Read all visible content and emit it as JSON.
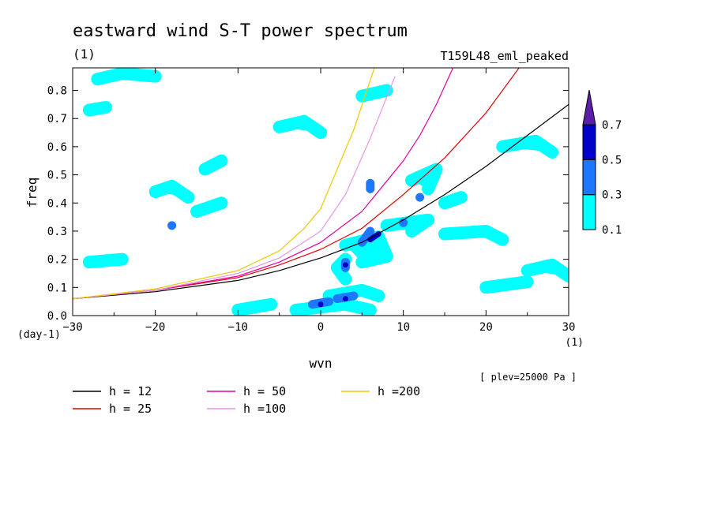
{
  "chart_data": {
    "type": "contour",
    "title": "eastward wind S-T power spectrum",
    "subtitle_left": "(1)",
    "subtitle_right": "T159L48_eml_peaked",
    "xlabel": "wvn",
    "ylabel": "freq",
    "x_unit": "(1)",
    "y_unit": "(day-1)",
    "note": "[ plev=25000 Pa ]",
    "xlim": [
      -30,
      30
    ],
    "ylim": [
      0,
      0.88
    ],
    "x_ticks": [
      "-30",
      "-20",
      "-10",
      "0",
      "10",
      "20",
      "30"
    ],
    "y_ticks": [
      "0.0",
      "0.1",
      "0.2",
      "0.3",
      "0.4",
      "0.5",
      "0.6",
      "0.7",
      "0.8"
    ],
    "colorbar": {
      "levels": [
        "0.1",
        "0.3",
        "0.5",
        "0.7"
      ],
      "colors": [
        "#00ffff",
        "#1e78ff",
        "#0000c8",
        "#5a1eaa"
      ]
    },
    "series": [
      {
        "name": "h = 12",
        "color": "#000000",
        "x": [
          -30,
          -20,
          -10,
          -5,
          0,
          5,
          10,
          15,
          20,
          25,
          30
        ],
        "y": [
          0.06,
          0.085,
          0.125,
          0.16,
          0.205,
          0.26,
          0.34,
          0.43,
          0.53,
          0.64,
          0.75
        ]
      },
      {
        "name": "h = 25",
        "color": "#e00000",
        "x": [
          -30,
          -20,
          -10,
          -5,
          0,
          5,
          10,
          15,
          20,
          24
        ],
        "y": [
          0.06,
          0.09,
          0.135,
          0.18,
          0.235,
          0.31,
          0.43,
          0.56,
          0.72,
          0.88
        ]
      },
      {
        "name": "h = 50",
        "color": "#e000a0",
        "x": [
          -30,
          -20,
          -10,
          -5,
          0,
          5,
          10,
          12,
          14,
          16
        ],
        "y": [
          0.06,
          0.09,
          0.14,
          0.19,
          0.26,
          0.37,
          0.55,
          0.64,
          0.75,
          0.88
        ]
      },
      {
        "name": "h =100",
        "color": "#e696e6",
        "x": [
          -30,
          -20,
          -10,
          -5,
          0,
          3,
          6,
          9
        ],
        "y": [
          0.06,
          0.09,
          0.15,
          0.205,
          0.3,
          0.43,
          0.63,
          0.85
        ]
      },
      {
        "name": "h =200",
        "color": "#f0c800",
        "x": [
          -30,
          -20,
          -10,
          -5,
          -2,
          0,
          2,
          4,
          6.5
        ],
        "y": [
          0.06,
          0.095,
          0.16,
          0.23,
          0.31,
          0.38,
          0.52,
          0.66,
          0.88
        ]
      }
    ],
    "regions": [
      {
        "level": "0.1",
        "points": [
          [
            3,
            0.25
          ],
          [
            7,
            0.28
          ],
          [
            8,
            0.21
          ],
          [
            5,
            0.19
          ]
        ]
      },
      {
        "level": "0.1",
        "points": [
          [
            -3,
            0.02
          ],
          [
            3,
            0.04
          ],
          [
            6,
            0.02
          ]
        ]
      },
      {
        "level": "0.1",
        "points": [
          [
            1,
            0.07
          ],
          [
            5,
            0.09
          ],
          [
            7,
            0.07
          ]
        ]
      },
      {
        "level": "0.1",
        "points": [
          [
            3,
            0.13
          ],
          [
            2,
            0.17
          ],
          [
            3,
            0.2
          ]
        ]
      },
      {
        "level": "0.1",
        "points": [
          [
            8,
            0.32
          ],
          [
            13,
            0.34
          ],
          [
            11,
            0.3
          ]
        ]
      },
      {
        "level": "0.1",
        "points": [
          [
            11,
            0.48
          ],
          [
            14,
            0.52
          ],
          [
            13,
            0.45
          ]
        ]
      },
      {
        "level": "0.1",
        "points": [
          [
            -28,
            0.73
          ],
          [
            -26,
            0.74
          ]
        ]
      },
      {
        "level": "0.1",
        "points": [
          [
            -27,
            0.84
          ],
          [
            -24,
            0.86
          ],
          [
            -20,
            0.85
          ]
        ]
      },
      {
        "level": "0.1",
        "points": [
          [
            -20,
            0.44
          ],
          [
            -18,
            0.46
          ],
          [
            -16,
            0.42
          ]
        ]
      },
      {
        "level": "0.1",
        "points": [
          [
            -14,
            0.52
          ],
          [
            -12,
            0.55
          ]
        ]
      },
      {
        "level": "0.1",
        "points": [
          [
            15,
            0.29
          ],
          [
            20,
            0.3
          ],
          [
            22,
            0.27
          ]
        ]
      },
      {
        "level": "0.1",
        "points": [
          [
            25,
            0.16
          ],
          [
            28,
            0.18
          ],
          [
            30,
            0.14
          ]
        ]
      },
      {
        "level": "0.1",
        "points": [
          [
            20,
            0.1
          ],
          [
            25,
            0.12
          ]
        ]
      },
      {
        "level": "0.1",
        "points": [
          [
            -28,
            0.19
          ],
          [
            -24,
            0.2
          ]
        ]
      },
      {
        "level": "0.1",
        "points": [
          [
            -10,
            0.02
          ],
          [
            -6,
            0.04
          ]
        ]
      },
      {
        "level": "0.1",
        "points": [
          [
            22,
            0.6
          ],
          [
            26,
            0.62
          ],
          [
            28,
            0.58
          ]
        ]
      },
      {
        "level": "0.1",
        "points": [
          [
            -5,
            0.67
          ],
          [
            -2,
            0.69
          ],
          [
            0,
            0.65
          ]
        ]
      },
      {
        "level": "0.1",
        "points": [
          [
            5,
            0.78
          ],
          [
            8,
            0.8
          ]
        ]
      },
      {
        "level": "0.1",
        "points": [
          [
            -15,
            0.37
          ],
          [
            -12,
            0.4
          ]
        ]
      },
      {
        "level": "0.1",
        "points": [
          [
            15,
            0.4
          ],
          [
            17,
            0.42
          ]
        ]
      },
      {
        "level": "0.3",
        "points": [
          [
            5,
            0.26
          ],
          [
            6,
            0.3
          ]
        ]
      },
      {
        "level": "0.3",
        "points": [
          [
            -1,
            0.04
          ],
          [
            1,
            0.05
          ]
        ]
      },
      {
        "level": "0.3",
        "points": [
          [
            2,
            0.06
          ],
          [
            4,
            0.07
          ]
        ]
      },
      {
        "level": "0.3",
        "points": [
          [
            3,
            0.17
          ],
          [
            3,
            0.19
          ]
        ]
      },
      {
        "level": "0.3",
        "points": [
          [
            12,
            0.42
          ]
        ]
      },
      {
        "level": "0.3",
        "points": [
          [
            6,
            0.47
          ],
          [
            6,
            0.45
          ]
        ]
      },
      {
        "level": "0.3",
        "points": [
          [
            -18,
            0.32
          ]
        ]
      },
      {
        "level": "0.3",
        "points": [
          [
            10,
            0.33
          ]
        ]
      },
      {
        "level": "0.5",
        "points": [
          [
            6,
            0.27
          ],
          [
            7,
            0.29
          ]
        ]
      },
      {
        "level": "0.5",
        "points": [
          [
            0,
            0.04
          ]
        ]
      },
      {
        "level": "0.5",
        "points": [
          [
            3,
            0.06
          ]
        ]
      },
      {
        "level": "0.5",
        "points": [
          [
            3,
            0.18
          ]
        ]
      }
    ]
  },
  "legend": [
    {
      "label": "h = 12",
      "color": "#000000"
    },
    {
      "label": "h = 25",
      "color": "#e00000"
    },
    {
      "label": "h = 50",
      "color": "#e000a0"
    },
    {
      "label": "h =100",
      "color": "#e696e6"
    },
    {
      "label": "h =200",
      "color": "#f0c800"
    }
  ]
}
